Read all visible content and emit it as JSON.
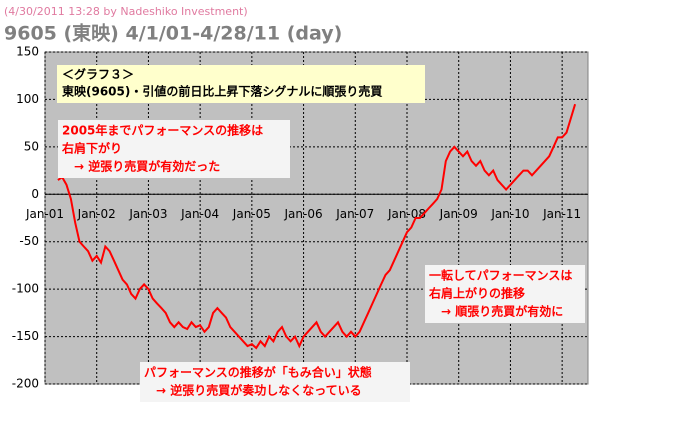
{
  "header": "(4/30/2011 13:28 by Nadeshiko Investment)",
  "chart_data": {
    "type": "line",
    "title": "9605 (東映)  4/1/01-4/28/11 (day)",
    "subtitle": [
      "＜グラフ３＞",
      "東映(9605)・引値の前日比上昇下落シグナルに順張り売買"
    ],
    "annotations": [
      {
        "lines": [
          "2005年までパフォーマンスの推移は",
          "右肩下がり",
          "　→ 逆張り売買が有効だった"
        ]
      },
      {
        "lines": [
          "一転してパフォーマンスは",
          "右肩上がりの推移",
          "　→ 順張り売買が有効に"
        ]
      },
      {
        "lines": [
          "パフォーマンスの推移が「もみ合い」状態",
          "　→ 逆張り売買が奏功しなくなっている"
        ]
      }
    ],
    "color": "#ff0000",
    "x": [
      "Apr-01",
      "May-01",
      "Jun-01",
      "Jul-01",
      "Aug-01",
      "Sep-01",
      "Oct-01",
      "Nov-01",
      "Dec-01",
      "Jan-02",
      "Feb-02",
      "Mar-02",
      "Apr-02",
      "May-02",
      "Jun-02",
      "Jul-02",
      "Aug-02",
      "Sep-02",
      "Oct-02",
      "Nov-02",
      "Dec-02",
      "Jan-03",
      "Feb-03",
      "Mar-03",
      "Apr-03",
      "May-03",
      "Jun-03",
      "Jul-03",
      "Aug-03",
      "Sep-03",
      "Oct-03",
      "Nov-03",
      "Dec-03",
      "Jan-04",
      "Feb-04",
      "Mar-04",
      "Apr-04",
      "May-04",
      "Jun-04",
      "Jul-04",
      "Aug-04",
      "Sep-04",
      "Oct-04",
      "Nov-04",
      "Dec-04",
      "Jan-05",
      "Feb-05",
      "Mar-05",
      "Apr-05",
      "May-05",
      "Jun-05",
      "Jul-05",
      "Aug-05",
      "Sep-05",
      "Oct-05",
      "Nov-05",
      "Dec-05",
      "Jan-06",
      "Feb-06",
      "Mar-06",
      "Apr-06",
      "May-06",
      "Jun-06",
      "Jul-06",
      "Aug-06",
      "Sep-06",
      "Oct-06",
      "Nov-06",
      "Dec-06",
      "Jan-07",
      "Feb-07",
      "Mar-07",
      "Apr-07",
      "May-07",
      "Jun-07",
      "Jul-07",
      "Aug-07",
      "Sep-07",
      "Oct-07",
      "Nov-07",
      "Dec-07",
      "Jan-08",
      "Feb-08",
      "Mar-08",
      "Apr-08",
      "May-08",
      "Jun-08",
      "Jul-08",
      "Aug-08",
      "Sep-08",
      "Oct-08",
      "Nov-08",
      "Dec-08",
      "Jan-09",
      "Feb-09",
      "Mar-09",
      "Apr-09",
      "May-09",
      "Jun-09",
      "Jul-09",
      "Aug-09",
      "Sep-09",
      "Oct-09",
      "Nov-09",
      "Dec-09",
      "Jan-10",
      "Feb-10",
      "Mar-10",
      "Apr-10",
      "May-10",
      "Jun-10",
      "Jul-10",
      "Aug-10",
      "Sep-10",
      "Oct-10",
      "Nov-10",
      "Dec-10",
      "Jan-11",
      "Feb-11",
      "Mar-11",
      "Apr-11"
    ],
    "values": [
      15,
      18,
      10,
      -5,
      -30,
      -50,
      -55,
      -60,
      -70,
      -65,
      -72,
      -55,
      -60,
      -70,
      -80,
      -90,
      -95,
      -105,
      -110,
      -100,
      -95,
      -100,
      -110,
      -115,
      -120,
      -125,
      -135,
      -140,
      -135,
      -140,
      -142,
      -135,
      -140,
      -138,
      -145,
      -140,
      -125,
      -120,
      -125,
      -130,
      -140,
      -145,
      -150,
      -155,
      -160,
      -158,
      -162,
      -155,
      -160,
      -150,
      -155,
      -145,
      -140,
      -150,
      -155,
      -150,
      -160,
      -150,
      -145,
      -140,
      -135,
      -145,
      -150,
      -145,
      -140,
      -135,
      -145,
      -150,
      -145,
      -150,
      -145,
      -135,
      -125,
      -115,
      -105,
      -95,
      -85,
      -80,
      -70,
      -60,
      -50,
      -40,
      -35,
      -25,
      -25,
      -20,
      -15,
      -10,
      -5,
      5,
      35,
      45,
      50,
      45,
      40,
      45,
      35,
      30,
      35,
      25,
      20,
      25,
      15,
      10,
      5,
      10,
      15,
      20,
      25,
      25,
      20,
      25,
      30,
      35,
      40,
      50,
      60,
      60,
      65,
      80,
      95
    ],
    "xlim": [
      "Jan-01",
      "Jul-11"
    ],
    "xticks": [
      "Jan-01",
      "Jan-02",
      "Jan-03",
      "Jan-04",
      "Jan-05",
      "Jan-06",
      "Jan-07",
      "Jan-08",
      "Jan-09",
      "Jan-10",
      "Jan-11"
    ],
    "ylim": [
      -200,
      150
    ],
    "yticks": [
      150,
      100,
      50,
      0,
      -50,
      -100,
      -150,
      -200
    ],
    "grid": true
  }
}
